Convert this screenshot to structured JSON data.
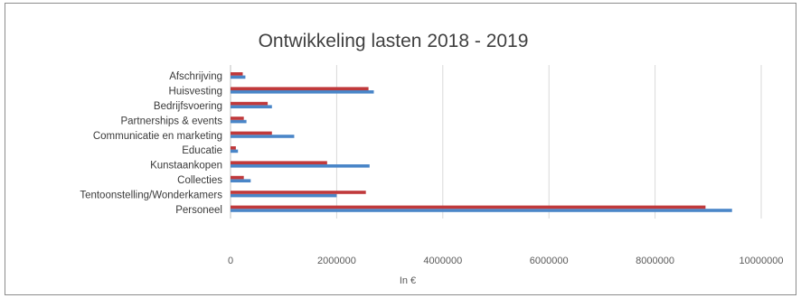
{
  "chart_data": {
    "type": "bar",
    "orientation": "horizontal",
    "title": "Ontwikkeling lasten 2018 - 2019",
    "xlabel": "In €",
    "ylabel": "",
    "categories": [
      "Afschrijving",
      "Huisvesting",
      "Bedrijfsvoering",
      "Partnerships & events",
      "Communicatie en marketing",
      "Educatie",
      "Kunstaankopen",
      "Collecties",
      "Tentoonstelling/Wonderkamers",
      "Personeel"
    ],
    "series": [
      {
        "values": [
          280000,
          2700000,
          780000,
          300000,
          1200000,
          140000,
          2620000,
          380000,
          2000000,
          9450000
        ],
        "color": "#4a86c8"
      },
      {
        "values": [
          230000,
          2600000,
          700000,
          250000,
          780000,
          100000,
          1820000,
          250000,
          2550000,
          8950000
        ],
        "color": "#c0393b"
      }
    ],
    "xlim": [
      0,
      10000000
    ],
    "xticks": [
      "0",
      "2000000",
      "4000000",
      "6000000",
      "8000000",
      "10000000"
    ],
    "grid": "vertical",
    "legend": "none"
  }
}
